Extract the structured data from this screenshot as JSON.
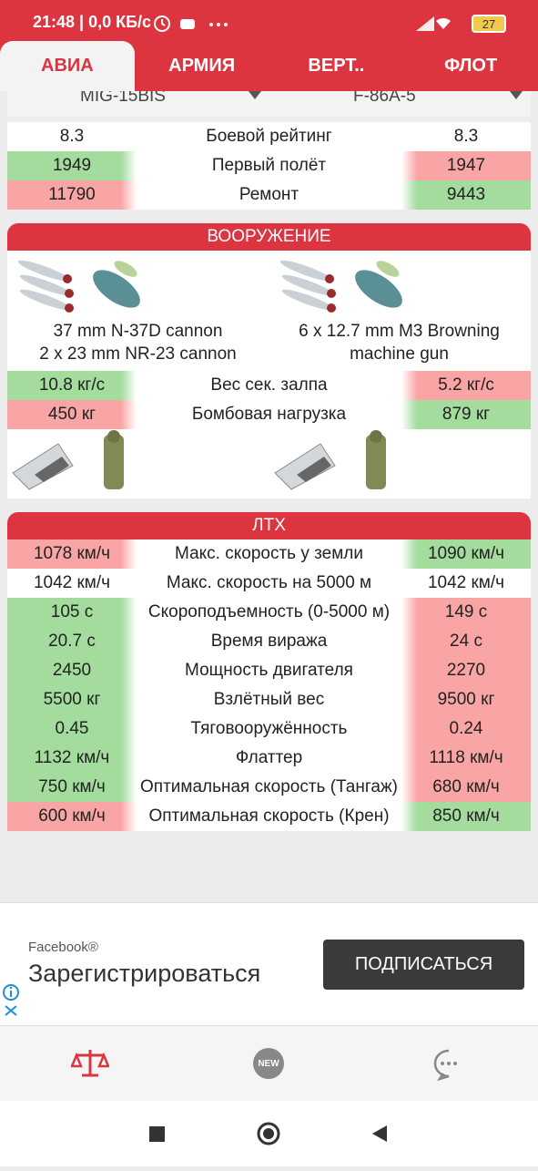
{
  "status_bar": {
    "time_and_speed": "21:48 | 0,0 КБ/с",
    "battery": "27"
  },
  "tabs": {
    "items": [
      "АВИА",
      "АРМИЯ",
      "ВЕРТ..",
      "ФЛОТ"
    ],
    "active": 0
  },
  "vehicles": [
    "MIG-15BIS",
    "F-86A-5"
  ],
  "general": {
    "rows": [
      {
        "left": "8.3",
        "label": "Боевой рейтинг",
        "right": "8.3",
        "left_color": "#ffffff",
        "right_color": "#ffffff"
      },
      {
        "left": "1949",
        "label": "Первый полёт",
        "right": "1947",
        "left_color": "#a3dc9d",
        "right_color": "#f9a5a5"
      },
      {
        "left": "11790",
        "label": "Ремонт",
        "right": "9443",
        "left_color": "#f9a5a5",
        "right_color": "#a3dc9d"
      }
    ]
  },
  "armament": {
    "title": "ВООРУЖЕНИЕ",
    "weapons": [
      [
        "37 mm N-37D cannon",
        "2 x 23 mm NR-23 cannon"
      ],
      [
        "6 x 12.7 mm M3 Browning machine gun"
      ]
    ],
    "rows": [
      {
        "left": "10.8 кг/с",
        "label": "Вес сек. залпа",
        "right": "5.2 кг/с",
        "left_color": "#a3dc9d",
        "right_color": "#f9a5a5"
      },
      {
        "left": "450 кг",
        "label": "Бомбовая нагрузка",
        "right": "879 кг",
        "left_color": "#f9a5a5",
        "right_color": "#a3dc9d"
      }
    ]
  },
  "performance": {
    "title": "ЛТХ",
    "rows": [
      {
        "left": "1078 км/ч",
        "label": "Макс. скорость у земли",
        "right": "1090 км/ч",
        "left_color": "#f9a5a5",
        "right_color": "#a3dc9d"
      },
      {
        "left": "1042 км/ч",
        "label": "Макс. скорость на 5000 м",
        "right": "1042 км/ч",
        "left_color": "#ffffff",
        "right_color": "#ffffff"
      },
      {
        "left": "105 с",
        "label": "Скороподъемность (0-5000 м)",
        "right": "149 с",
        "left_color": "#a3dc9d",
        "right_color": "#f9a5a5"
      },
      {
        "left": "20.7 с",
        "label": "Время виража",
        "right": "24 с",
        "left_color": "#a3dc9d",
        "right_color": "#f9a5a5"
      },
      {
        "left": "2450",
        "label": "Мощность двигателя",
        "right": "2270",
        "left_color": "#a3dc9d",
        "right_color": "#f9a5a5"
      },
      {
        "left": "5500 кг",
        "label": "Взлётный вес",
        "right": "9500 кг",
        "left_color": "#a3dc9d",
        "right_color": "#f9a5a5"
      },
      {
        "left": "0.45",
        "label": "Тяговооружённость",
        "right": "0.24",
        "left_color": "#a3dc9d",
        "right_color": "#f9a5a5"
      },
      {
        "left": "1132 км/ч",
        "label": "Флаттер",
        "right": "1118 км/ч",
        "left_color": "#a3dc9d",
        "right_color": "#f9a5a5"
      },
      {
        "left": "750 км/ч",
        "label": "Оптимальная скорость (Тангаж)",
        "right": "680 км/ч",
        "left_color": "#a3dc9d",
        "right_color": "#f9a5a5"
      },
      {
        "left": "600 км/ч",
        "label": "Оптимальная скорость (Крен)",
        "right": "850 км/ч",
        "left_color": "#f9a5a5",
        "right_color": "#a3dc9d"
      }
    ]
  },
  "ad": {
    "brand": "Facebook®",
    "headline": "Зарегистрироваться",
    "button": "ПОДПИСАТЬСЯ"
  },
  "nav": {
    "badge": "NEW"
  }
}
